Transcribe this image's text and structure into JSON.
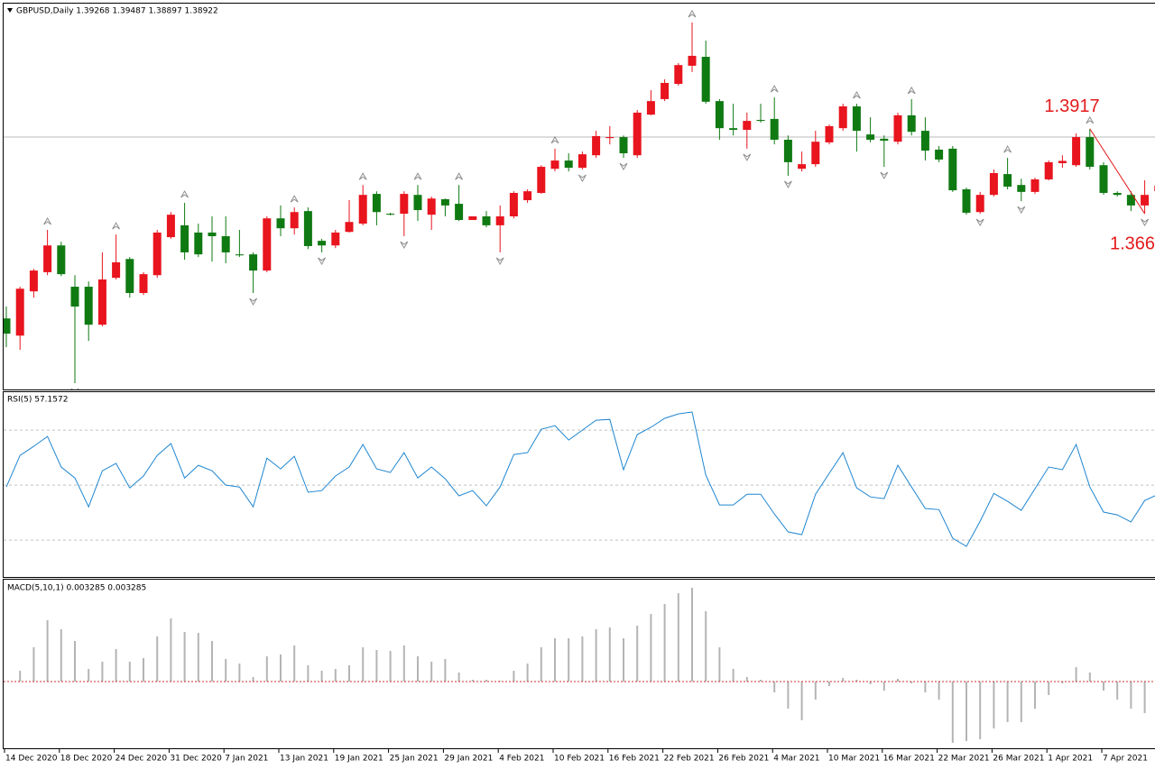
{
  "chart_data": [
    {
      "type": "candlestick",
      "title": "GBPUSD,Daily  1.39268 1.39487 1.38897 1.38922",
      "categories": [
        "14 Dec 2020",
        null,
        null,
        null,
        "18 Dec 2020",
        null,
        null,
        null,
        "24 Dec 2020",
        null,
        null,
        null,
        "31 Dec 2020",
        null,
        null,
        null,
        "7 Jan 2021",
        null,
        null,
        null,
        "13 Jan 2021",
        null,
        null,
        null,
        "19 Jan 2021",
        null,
        null,
        null,
        "25 Jan 2021",
        null,
        null,
        null,
        "29 Jan 2021",
        null,
        null,
        null,
        "4 Feb 2021",
        null,
        null,
        null,
        "10 Feb 2021",
        null,
        null,
        null,
        "16 Feb 2021",
        null,
        null,
        null,
        "22 Feb 2021",
        null,
        null,
        null,
        "26 Feb 2021",
        null,
        null,
        null,
        "4 Mar 2021",
        null,
        null,
        null,
        "10 Mar 2021",
        null,
        null,
        null,
        "16 Mar 2021",
        null,
        null,
        null,
        "22 Mar 2021",
        null,
        null,
        null,
        "26 Mar 2021",
        null,
        null,
        null,
        "1 Apr 2021",
        null,
        null,
        null,
        "7 Apr 2021",
        null,
        null,
        null,
        null
      ],
      "open": [
        1.3343,
        1.3291,
        1.3425,
        1.3483,
        1.3564,
        1.3439,
        1.3439,
        1.3324,
        1.3466,
        1.3523,
        1.342,
        1.3474,
        1.3589,
        1.3625,
        1.3603,
        1.3603,
        1.3592,
        1.3537,
        1.3537,
        1.3488,
        1.3646,
        1.3616,
        1.3668,
        1.3578,
        1.3564,
        1.3605,
        1.363,
        1.372,
        1.366,
        1.366,
        1.3717,
        1.3657,
        1.3704,
        1.369,
        1.3641,
        1.3652,
        1.3625,
        1.3652,
        1.3701,
        1.3723,
        1.3796,
        1.3821,
        1.3799,
        1.3837,
        1.3889,
        1.3892,
        1.3837,
        1.396,
        1.4007,
        1.4053,
        1.4108,
        1.4135,
        1.4001,
        1.3919,
        1.3914,
        1.3944,
        1.3947,
        1.3884,
        1.3796,
        1.381,
        1.3876,
        1.3919,
        1.3985,
        1.39,
        1.3887,
        1.3878,
        1.3958,
        1.3911,
        1.3854,
        1.3857,
        1.3734,
        1.3665,
        1.3717,
        1.378,
        1.3747,
        1.3726,
        1.3764,
        1.3813,
        1.3807,
        1.3892,
        1.3807,
        1.3723,
        1.3717,
        1.3685,
        1.3728
      ],
      "high": [
        1.3379,
        1.3439,
        1.3493,
        1.3611,
        1.3575,
        1.3474,
        1.3455,
        1.3543,
        1.3597,
        1.3529,
        1.3483,
        1.3611,
        1.3665,
        1.3693,
        1.363,
        1.3652,
        1.3652,
        1.3611,
        1.3543,
        1.3652,
        1.3685,
        1.3679,
        1.3679,
        1.3584,
        1.3611,
        1.3701,
        1.3747,
        1.3728,
        1.3663,
        1.3728,
        1.3747,
        1.3712,
        1.3706,
        1.3747,
        1.3652,
        1.3668,
        1.3685,
        1.3728,
        1.3734,
        1.3807,
        1.3857,
        1.3843,
        1.3848,
        1.3911,
        1.3925,
        1.3897,
        1.3974,
        1.4034,
        1.4067,
        1.4116,
        1.4239,
        1.4184,
        1.4007,
        1.3993,
        1.3966,
        1.3993,
        1.4012,
        1.3897,
        1.3848,
        1.3911,
        1.393,
        1.3993,
        1.3993,
        1.3952,
        1.3897,
        1.3966,
        1.4007,
        1.3952,
        1.3865,
        1.3865,
        1.3739,
        1.3726,
        1.3794,
        1.3829,
        1.3766,
        1.3769,
        1.3821,
        1.3837,
        1.3903,
        1.3917,
        1.3816,
        1.3728,
        1.3728,
        1.3761,
        1.3766
      ],
      "low": [
        1.3256,
        1.3248,
        1.3406,
        1.3474,
        1.3471,
        1.3147,
        1.3275,
        1.3319,
        1.3461,
        1.3406,
        1.3414,
        1.3466,
        1.3584,
        1.3521,
        1.3529,
        1.3515,
        1.351,
        1.3529,
        1.342,
        1.3483,
        1.3592,
        1.3597,
        1.3553,
        1.3543,
        1.3556,
        1.3603,
        1.3625,
        1.3625,
        1.3655,
        1.3592,
        1.3638,
        1.3611,
        1.3652,
        1.3638,
        1.3641,
        1.3619,
        1.3543,
        1.3646,
        1.3693,
        1.372,
        1.3788,
        1.3788,
        1.3794,
        1.3829,
        1.387,
        1.3829,
        1.3829,
        1.3958,
        1.4001,
        1.4048,
        1.4089,
        1.3993,
        1.3884,
        1.3897,
        1.3857,
        1.3936,
        1.387,
        1.3775,
        1.3788,
        1.3802,
        1.387,
        1.3911,
        1.3848,
        1.3876,
        1.3802,
        1.387,
        1.3897,
        1.3821,
        1.3816,
        1.3726,
        1.3657,
        1.366,
        1.3712,
        1.3734,
        1.3698,
        1.372,
        1.3761,
        1.3799,
        1.3802,
        1.3794,
        1.3717,
        1.3712,
        1.3668,
        1.366,
        1.3679
      ],
      "close": [
        1.3297,
        1.3433,
        1.3488,
        1.3564,
        1.3477,
        1.3379,
        1.3324,
        1.3461,
        1.3513,
        1.342,
        1.3477,
        1.3603,
        1.3657,
        1.3543,
        1.3537,
        1.3592,
        1.3543,
        1.3534,
        1.3488,
        1.3646,
        1.3616,
        1.3665,
        1.3562,
        1.3564,
        1.3603,
        1.3635,
        1.3717,
        1.3665,
        1.3657,
        1.372,
        1.3671,
        1.3706,
        1.3685,
        1.3641,
        1.3652,
        1.3625,
        1.3652,
        1.3723,
        1.3728,
        1.3802,
        1.3821,
        1.3799,
        1.384,
        1.3895,
        1.3892,
        1.3843,
        1.3966,
        1.4001,
        1.4056,
        1.411,
        1.4138,
        1.3999,
        1.3919,
        1.3914,
        1.3941,
        1.3941,
        1.3884,
        1.3816,
        1.381,
        1.3878,
        1.3925,
        1.3985,
        1.3911,
        1.3884,
        1.3881,
        1.3958,
        1.3908,
        1.3851,
        1.3824,
        1.3731,
        1.3663,
        1.3717,
        1.3783,
        1.3742,
        1.3726,
        1.3764,
        1.3816,
        1.382,
        1.3892,
        1.3802,
        1.3723,
        1.3717,
        1.3685,
        1.3717,
        1.3745
      ],
      "up_color": "#e8141e",
      "down_color": "#0f7a12",
      "ylim": [
        1.3128,
        1.4307
      ],
      "bid_line": 1.3892,
      "fractals_up": [
        3,
        8,
        13,
        21,
        26,
        30,
        33,
        40,
        50,
        56,
        62,
        66,
        73,
        79
      ],
      "fractals_down": [
        5,
        18,
        23,
        29,
        36,
        42,
        45,
        54,
        57,
        64,
        71,
        74,
        83
      ],
      "annotations": [
        1.3917,
        1.366
      ],
      "annotation_color": "#e41b1b"
    },
    {
      "type": "line",
      "title": "RSI(5) 57.1572",
      "color": "#1f86d1",
      "values": [
        49.3,
        60.8,
        64.1,
        67.7,
        56.6,
        52.6,
        42.1,
        55.2,
        57.9,
        49.0,
        53.3,
        60.8,
        65.1,
        52.6,
        57.2,
        55.2,
        50.0,
        49.3,
        42.1,
        59.8,
        55.9,
        60.5,
        47.4,
        48.0,
        53.3,
        56.6,
        64.8,
        55.9,
        54.6,
        61.8,
        52.6,
        56.6,
        52.3,
        46.1,
        48.0,
        42.5,
        49.3,
        61.1,
        61.8,
        70.3,
        71.6,
        66.4,
        70.0,
        73.6,
        73.9,
        55.6,
        68.4,
        71.0,
        74.3,
        75.9,
        76.6,
        53.6,
        42.8,
        42.8,
        46.7,
        46.7,
        39.5,
        33.0,
        32.0,
        46.7,
        54.3,
        61.8,
        49.0,
        45.7,
        45.1,
        57.2,
        49.3,
        41.5,
        41.1,
        30.7,
        27.7,
        36.9,
        47.0,
        44.1,
        40.8,
        48.7,
        56.6,
        55.6,
        64.8,
        49.3,
        40.2,
        39.2,
        36.6,
        44.4,
        46.7
      ],
      "ylim": [
        16.6,
        83.8
      ],
      "levels": [
        30,
        50,
        70
      ]
    },
    {
      "type": "bar",
      "title": "MACD(5,10,1) 0.003285 0.003285",
      "color": "#b4b4b4",
      "values": [
        0,
        0.0012,
        0.0038,
        0.0068,
        0.0058,
        0.0045,
        0.0014,
        0.0022,
        0.0036,
        0.0022,
        0.0026,
        0.005,
        0.007,
        0.0055,
        0.0054,
        0.0045,
        0.0025,
        0.002,
        0.0005,
        0.0028,
        0.003,
        0.004,
        0.0018,
        0.0012,
        0.0014,
        0.0018,
        0.0038,
        0.0035,
        0.0034,
        0.004,
        0.0028,
        0.0022,
        0.0025,
        0.001,
        0.0002,
        0.0002,
        0.0001,
        0.0012,
        0.002,
        0.0038,
        0.0048,
        0.0048,
        0.005,
        0.0058,
        0.006,
        0.0048,
        0.0062,
        0.0075,
        0.0086,
        0.0098,
        0.0104,
        0.0078,
        0.0038,
        0.0014,
        0.0005,
        0.0002,
        -0.0012,
        -0.003,
        -0.0043,
        -0.002,
        -0.0005,
        0.0004,
        0.0002,
        -0.0003,
        -0.001,
        0.0003,
        -0.0002,
        -0.0012,
        -0.002,
        -0.0068,
        -0.0066,
        -0.0064,
        -0.0052,
        -0.0045,
        -0.0045,
        -0.003,
        -0.0015,
        -0.0002,
        0.0016,
        0.001,
        -0.001,
        -0.002,
        -0.003,
        -0.0035,
        -0.0028
      ],
      "ylim": [
        -0.0074,
        0.0113
      ],
      "levels": [
        0
      ],
      "level_color": "#c83232"
    }
  ]
}
